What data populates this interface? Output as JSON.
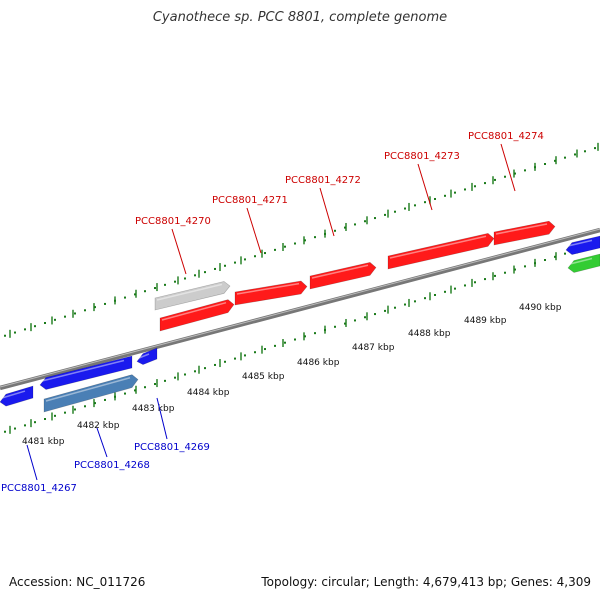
{
  "title": "Cyanothece sp. PCC 8801, complete genome",
  "footer": {
    "accession": "Accession: NC_011726",
    "summary": "Topology: circular; Length: 4,679,413 bp; Genes: 4,309"
  },
  "colors": {
    "forward_gene": "#ff1a1a",
    "reverse_gene": "#1a1aee",
    "steelblue_gene": "#4a7fb5",
    "gray_gene": "#cccccc",
    "green_gene": "#33cc33",
    "backbone": "#888888",
    "tick": "#1a7a1a",
    "label_forward": "#cc0000",
    "label_reverse": "#0000cc"
  },
  "scale": {
    "kbp_labels": [
      "4481 kbp",
      "4482 kbp",
      "4483 kbp",
      "4484 kbp",
      "4485 kbp",
      "4486 kbp",
      "4487 kbp",
      "4488 kbp",
      "4489 kbp",
      "4490 kbp"
    ]
  },
  "genes": {
    "forward": [
      "PCC8801_4270",
      "PCC8801_4271",
      "PCC8801_4272",
      "PCC8801_4273",
      "PCC8801_4274"
    ],
    "reverse": [
      "PCC8801_4267",
      "PCC8801_4268",
      "PCC8801_4269"
    ]
  }
}
